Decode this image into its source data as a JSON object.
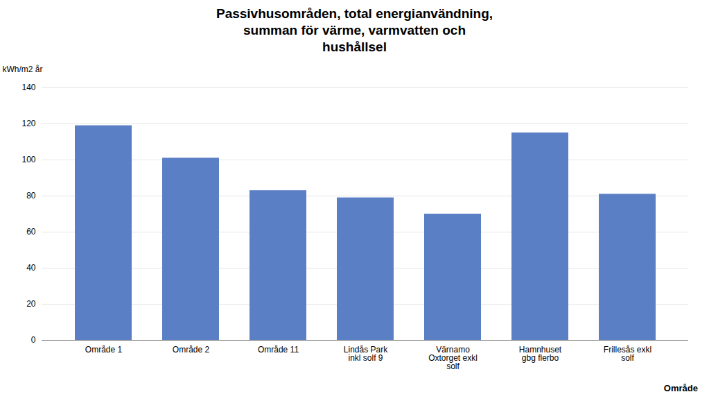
{
  "chart_data": {
    "type": "bar",
    "title": "Passivhusområden, total energianvändning,\nsumman för värme, varmvatten och\nhushållsel",
    "ylabel": "kWh/m2 år",
    "xlabel": "Område",
    "categories": [
      "Område 1",
      "Område 2",
      "Område 11",
      "Lindås Park\ninkl solf 9",
      "Värnamo\nOxtorget exkl\nsolf",
      "Hamnhuset\ngbg flerbo",
      "Frillesås exkl\nsolf"
    ],
    "values": [
      119,
      101,
      83,
      79,
      70,
      115,
      81
    ],
    "color": "#5b7fc4",
    "ylim": [
      0,
      140
    ],
    "yticks": [
      0,
      20,
      40,
      60,
      80,
      100,
      120,
      140
    ],
    "grid": true
  }
}
